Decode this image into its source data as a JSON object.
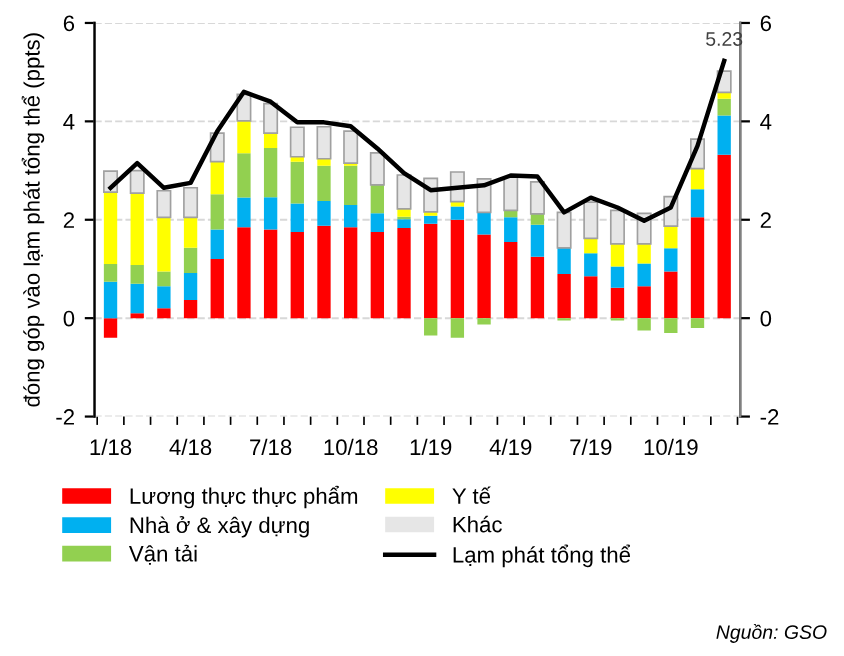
{
  "chart_data": {
    "type": "bar",
    "stacked": true,
    "ylabel": "đóng góp vào lạm phát tổng thể (ppts)",
    "categories": [
      "1/18",
      null,
      null,
      "4/18",
      null,
      null,
      "7/18",
      null,
      null,
      "10/18",
      null,
      null,
      "1/19",
      null,
      null,
      "4/19",
      null,
      null,
      "7/19",
      null,
      null,
      "10/19",
      null,
      null
    ],
    "series": [
      {
        "name": "Lương thực thực phẩm",
        "color": "#ff0000",
        "values": [
          -0.4,
          0.1,
          0.2,
          0.37,
          1.2,
          1.85,
          1.8,
          1.75,
          1.88,
          1.85,
          1.75,
          1.83,
          1.92,
          2.0,
          1.7,
          1.55,
          1.25,
          0.9,
          0.85,
          0.62,
          0.65,
          0.95,
          2.05,
          3.32
        ]
      },
      {
        "name": "Nhà ở & xây dựng",
        "color": "#00b0f0",
        "values": [
          0.74,
          0.6,
          0.45,
          0.55,
          0.6,
          0.6,
          0.66,
          0.58,
          0.5,
          0.45,
          0.38,
          0.18,
          0.16,
          0.27,
          0.45,
          0.5,
          0.65,
          0.53,
          0.47,
          0.43,
          0.46,
          0.47,
          0.57,
          0.8
        ]
      },
      {
        "name": "Vận tải",
        "color": "#92d050",
        "values": [
          0.36,
          0.38,
          0.3,
          0.51,
          0.72,
          0.9,
          1.0,
          0.85,
          0.72,
          0.8,
          0.58,
          0.05,
          -0.35,
          -0.4,
          -0.13,
          0.14,
          0.22,
          -0.05,
          0.0,
          -0.05,
          -0.25,
          -0.3,
          -0.2,
          0.34
        ]
      },
      {
        "name": "Y tế",
        "color": "#ffff00",
        "values": [
          1.46,
          1.46,
          1.1,
          0.62,
          0.66,
          0.66,
          0.3,
          0.1,
          0.14,
          0.05,
          0.0,
          0.16,
          0.08,
          0.1,
          0.0,
          0.0,
          0.0,
          0.0,
          0.3,
          0.46,
          0.4,
          0.45,
          0.42,
          0.13
        ]
      },
      {
        "name": "Khác",
        "color": "#e6e6e6",
        "values": [
          0.43,
          0.46,
          0.54,
          0.6,
          0.58,
          0.54,
          0.6,
          0.6,
          0.65,
          0.65,
          0.65,
          0.69,
          0.68,
          0.6,
          0.68,
          0.68,
          0.65,
          0.72,
          0.74,
          0.68,
          0.62,
          0.6,
          0.6,
          0.43
        ]
      },
      {
        "name": "Lạm phát tổng thể",
        "type": "line",
        "axis": "y2",
        "color": "#000000",
        "values": [
          2.65,
          3.15,
          2.65,
          2.75,
          3.8,
          4.6,
          4.4,
          3.98,
          3.98,
          3.9,
          3.45,
          2.95,
          2.6,
          2.65,
          2.7,
          2.9,
          2.88,
          2.15,
          2.45,
          2.25,
          1.98,
          2.25,
          3.5,
          5.23
        ],
        "value_labels": [
          null,
          null,
          null,
          null,
          null,
          null,
          null,
          null,
          null,
          null,
          null,
          null,
          null,
          null,
          null,
          null,
          null,
          null,
          null,
          null,
          null,
          null,
          null,
          "5.23"
        ]
      }
    ],
    "ylim": [
      -2,
      6
    ],
    "yticks": [
      -2,
      0,
      2,
      4,
      6
    ],
    "y2lim": [
      -2,
      6
    ],
    "y2ticks": [
      -2,
      0,
      2,
      4,
      6
    ],
    "grid": "y",
    "legend": "bottom",
    "marker": "none",
    "line_style": "solid",
    "annotations": [
      "Nguồn: GSO"
    ]
  }
}
